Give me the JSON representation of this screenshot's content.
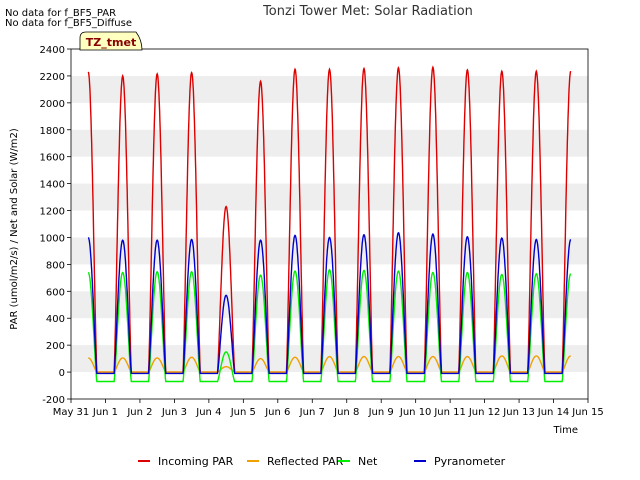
{
  "notes": [
    "No data for f_BF5_PAR",
    "No data for f_BF5_Diffuse"
  ],
  "chart_data": {
    "type": "line",
    "title": "Tonzi Tower Met: Solar Radiation",
    "badge": "TZ_tmet",
    "xlabel": "Time",
    "ylabel": "PAR (umol/m2/s) / Net and Solar (W/m2)",
    "ylim": [
      -200,
      2400
    ],
    "xlim": [
      0,
      15
    ],
    "yticks": [
      -200,
      0,
      200,
      400,
      600,
      800,
      1000,
      1200,
      1400,
      1600,
      1800,
      2000,
      2200,
      2400
    ],
    "xticks": [
      {
        "value": 0,
        "label": "May 31"
      },
      {
        "value": 1,
        "label": "Jun 1"
      },
      {
        "value": 2,
        "label": "Jun 2"
      },
      {
        "value": 3,
        "label": "Jun 3"
      },
      {
        "value": 4,
        "label": "Jun 4"
      },
      {
        "value": 5,
        "label": "Jun 5"
      },
      {
        "value": 6,
        "label": "Jun 6"
      },
      {
        "value": 7,
        "label": "Jun 7"
      },
      {
        "value": 8,
        "label": "Jun 8"
      },
      {
        "value": 9,
        "label": "Jun 9"
      },
      {
        "value": 10,
        "label": "Jun 10"
      },
      {
        "value": 11,
        "label": "Jun 11"
      },
      {
        "value": 12,
        "label": "Jun 12"
      },
      {
        "value": 13,
        "label": "Jun 13"
      },
      {
        "value": 14,
        "label": "Jun 14"
      },
      {
        "value": 15,
        "label": "Jun 15"
      }
    ],
    "grid_bands": true,
    "legend_position": "bottom",
    "series": [
      {
        "name": "Incoming PAR",
        "color": "#dd0000",
        "night": 0,
        "daily_peaks": [
          2230,
          2200,
          2215,
          2225,
          1230,
          2160,
          2250,
          2250,
          2255,
          2260,
          2265,
          2245,
          2235,
          2235
        ]
      },
      {
        "name": "Reflected PAR",
        "color": "#f0a000",
        "night": 0,
        "daily_peaks": [
          105,
          105,
          105,
          110,
          40,
          100,
          110,
          115,
          115,
          115,
          115,
          115,
          120,
          120
        ]
      },
      {
        "name": "Net",
        "color": "#00ee00",
        "night": -70,
        "daily_peaks": [
          740,
          740,
          745,
          745,
          150,
          720,
          750,
          760,
          755,
          750,
          740,
          740,
          725,
          730
        ]
      },
      {
        "name": "Pyranometer",
        "color": "#0000cc",
        "night": -10,
        "daily_peaks": [
          1000,
          980,
          980,
          985,
          570,
          980,
          1015,
          1000,
          1020,
          1035,
          1025,
          1005,
          995,
          985
        ]
      }
    ]
  }
}
